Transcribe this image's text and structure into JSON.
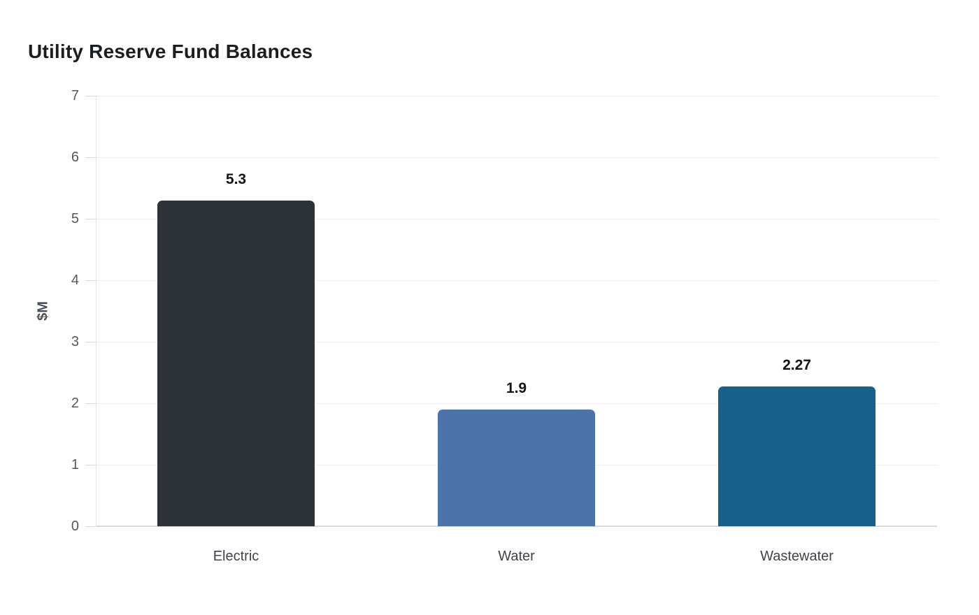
{
  "chart_data": {
    "type": "bar",
    "title": "Utility Reserve Fund Balances",
    "categories": [
      "Electric",
      "Water",
      "Wastewater"
    ],
    "values": [
      5.3,
      1.9,
      2.27
    ],
    "value_labels": [
      "5.3",
      "1.9",
      "2.27"
    ],
    "bar_colors": [
      "#2d3338",
      "#4c73aa",
      "#17608a"
    ],
    "xlabel": "",
    "ylabel": "$M",
    "ylim": [
      0,
      7
    ],
    "yticks": [
      "0",
      "1",
      "2",
      "3",
      "4",
      "5",
      "6",
      "7"
    ],
    "grid": true,
    "legend": "none",
    "background_color": "#ffffff",
    "title_color": "#1b1e21",
    "tick_label_color": "#54595f",
    "category_label_color": "#3e444b",
    "value_label_color": "#121518",
    "gridline_color": "#eeeeef",
    "zero_line_color": "#d9dadb"
  }
}
